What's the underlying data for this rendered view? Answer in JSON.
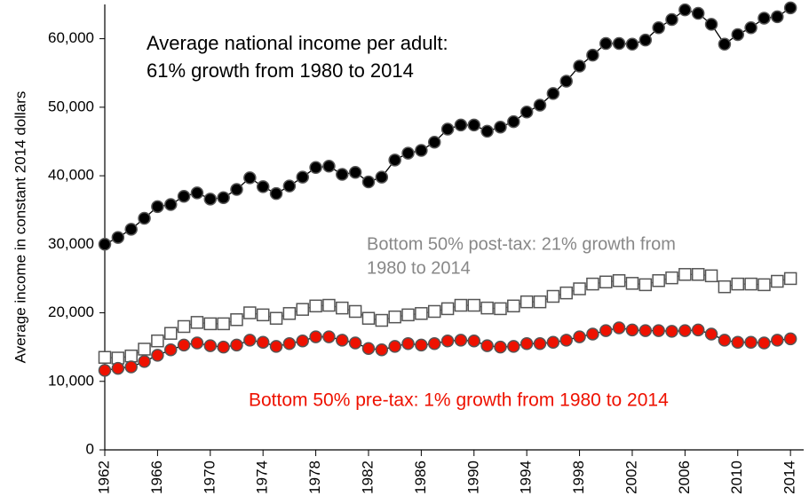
{
  "chart_data": {
    "type": "line",
    "ylabel": "Average income in constant 2014 dollars",
    "x": [
      1962,
      1963,
      1964,
      1965,
      1966,
      1967,
      1968,
      1969,
      1970,
      1971,
      1972,
      1973,
      1974,
      1975,
      1976,
      1977,
      1978,
      1979,
      1980,
      1981,
      1982,
      1983,
      1984,
      1985,
      1986,
      1987,
      1988,
      1989,
      1990,
      1991,
      1992,
      1993,
      1994,
      1995,
      1996,
      1997,
      1998,
      1999,
      2000,
      2001,
      2002,
      2003,
      2004,
      2005,
      2006,
      2007,
      2008,
      2009,
      2010,
      2011,
      2012,
      2013,
      2014
    ],
    "xlim": [
      1962,
      2015
    ],
    "xticks": [
      1962,
      1966,
      1970,
      1974,
      1978,
      1982,
      1986,
      1990,
      1994,
      1998,
      2002,
      2006,
      2010,
      2014
    ],
    "ylim": [
      0,
      65000
    ],
    "yticks": [
      0,
      {
        "value": 10000,
        "label": "10,000"
      },
      {
        "value": 20000,
        "label": "20,000"
      },
      {
        "value": 30000,
        "label": "30,000"
      },
      {
        "value": 40000,
        "label": "40,000"
      },
      {
        "value": 50000,
        "label": "50,000"
      },
      {
        "value": 60000,
        "label": "60,000"
      }
    ],
    "series": [
      {
        "name": [
          "Average national income per adult:",
          "61% growth from 1980 to 2014"
        ],
        "color": "#000000",
        "marker": "circle",
        "marker_fill": "#000000",
        "values": [
          30000,
          31000,
          32200,
          33800,
          35500,
          35800,
          37000,
          37500,
          36600,
          36800,
          38000,
          39700,
          38400,
          37400,
          38500,
          39800,
          41200,
          41400,
          40200,
          40500,
          39100,
          39800,
          42300,
          43300,
          43700,
          44900,
          46800,
          47400,
          47400,
          46500,
          47100,
          47900,
          49300,
          50300,
          52000,
          53800,
          56000,
          57600,
          59300,
          59300,
          59200,
          59800,
          61600,
          62800,
          64200,
          63700,
          62100,
          59200,
          60600,
          61600,
          63000,
          63200,
          64500
        ]
      },
      {
        "name": [
          "Bottom 50% post-tax: 21% growth from",
          "1980 to 2014"
        ],
        "color": "#888888",
        "marker": "square",
        "marker_fill": "#ffffff",
        "values": [
          13500,
          13400,
          13700,
          14700,
          15900,
          17000,
          18000,
          18600,
          18400,
          18400,
          19000,
          20000,
          19700,
          19200,
          19900,
          20500,
          21000,
          21100,
          20700,
          20200,
          19200,
          18900,
          19400,
          19700,
          19900,
          20200,
          20600,
          21100,
          21100,
          20700,
          20600,
          21000,
          21600,
          21600,
          22400,
          22900,
          23500,
          24200,
          24500,
          24700,
          24300,
          24100,
          24700,
          25100,
          25600,
          25600,
          25400,
          23800,
          24200,
          24200,
          24100,
          24600,
          25000
        ]
      },
      {
        "name": [
          "Bottom 50% pre-tax: 1% growth from 1980 to 2014"
        ],
        "color": "#ee1100",
        "marker": "circle",
        "marker_fill": "#ee1100",
        "values": [
          11600,
          11900,
          12100,
          12900,
          13800,
          14600,
          15300,
          15600,
          15200,
          15000,
          15300,
          16000,
          15700,
          15100,
          15500,
          15900,
          16500,
          16500,
          16000,
          15600,
          14800,
          14600,
          15100,
          15500,
          15300,
          15500,
          15900,
          16000,
          15900,
          15200,
          15000,
          15100,
          15500,
          15500,
          15700,
          16000,
          16500,
          16900,
          17400,
          17800,
          17500,
          17400,
          17400,
          17300,
          17400,
          17500,
          16900,
          16000,
          15700,
          15700,
          15600,
          16000,
          16200
        ]
      }
    ]
  }
}
